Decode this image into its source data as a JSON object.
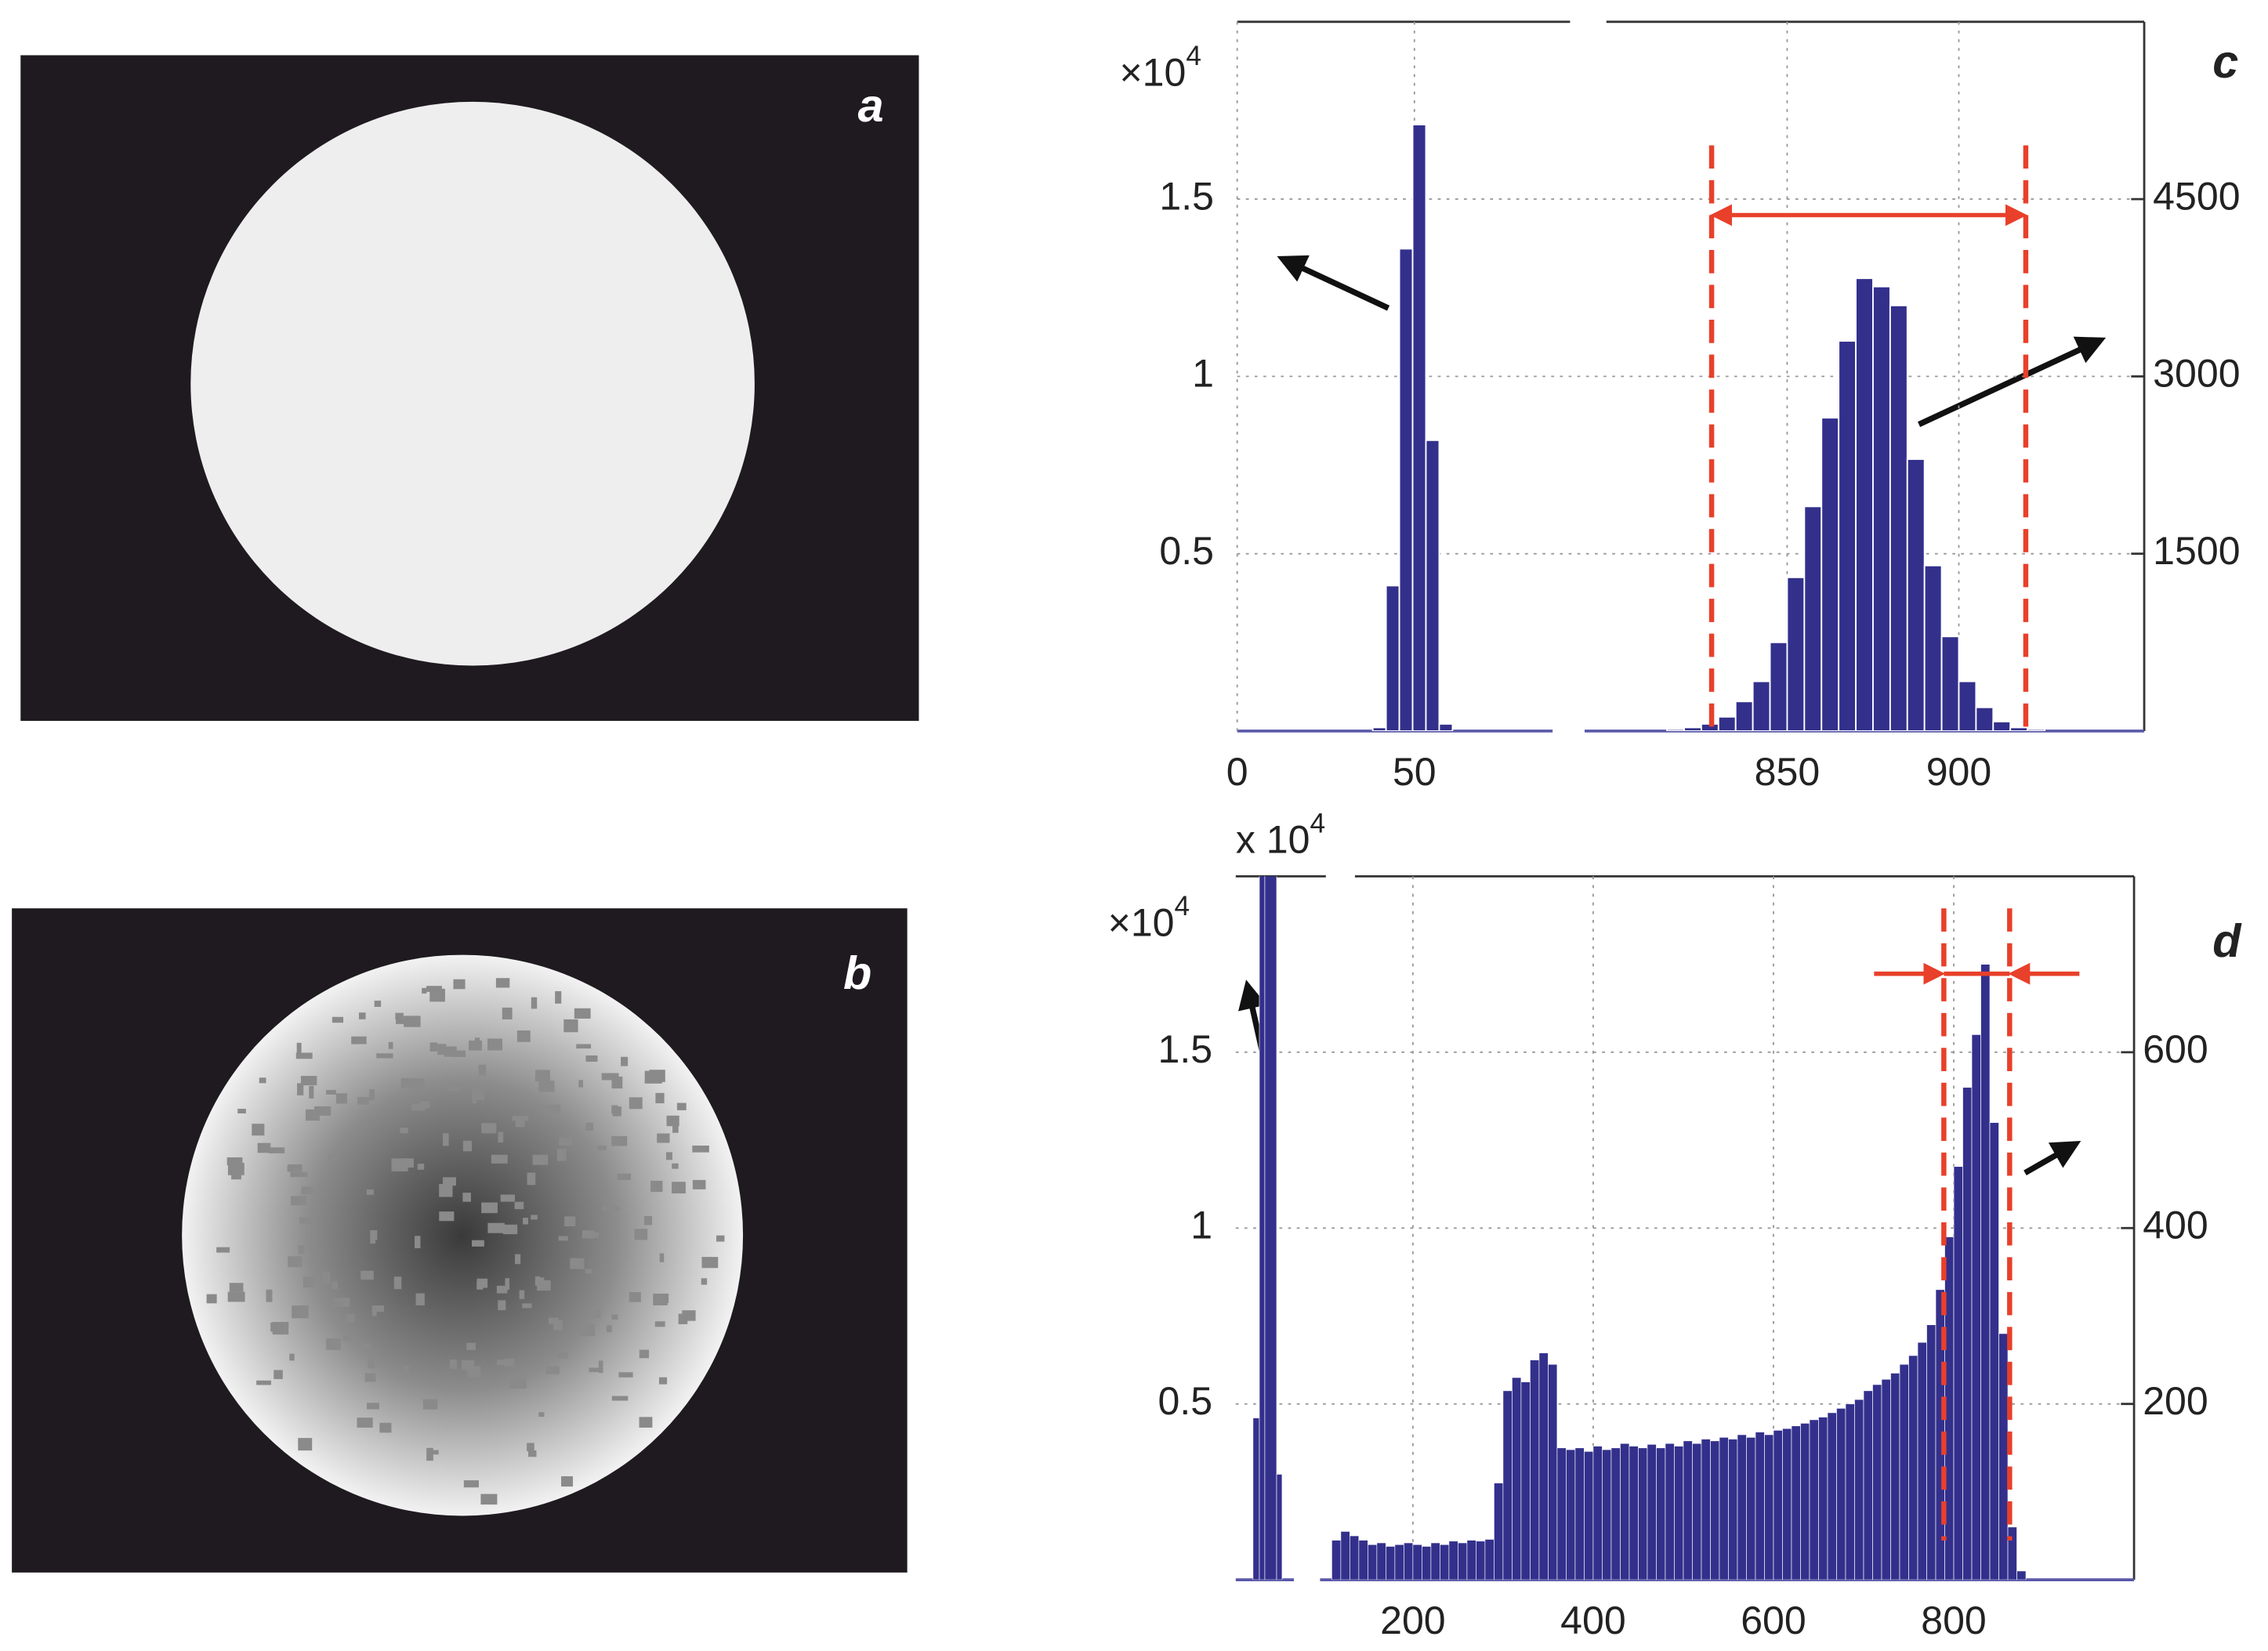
{
  "images": [
    {
      "label": "a"
    },
    {
      "label": "b"
    }
  ],
  "chart_data": [
    {
      "type": "histogram",
      "label": "c",
      "color": "#33308c",
      "grid": true,
      "y_scale_label": {
        "base": "×10",
        "exponent": "4"
      },
      "ylim": [
        0,
        2
      ],
      "yticks": [
        0.5,
        1,
        1.5
      ],
      "y2lim": [
        0,
        6000
      ],
      "y2ticks": [
        1500,
        3000,
        4500
      ],
      "markers": [
        828,
        919.5
      ],
      "marker_color": "#e8402a",
      "segments": [
        {
          "axis": "y",
          "xlim": [
            0,
            89
          ],
          "xticks": [
            0,
            50
          ],
          "bins": [
            38.25,
            42,
            45.75,
            49.5,
            53.25,
            57,
            60.75
          ],
          "values": [
            0.01,
            0.41,
            1.36,
            1.71,
            0.82,
            0.02
          ]
        },
        {
          "axis": "y2",
          "xlim": [
            791,
            954
          ],
          "xticks": [
            850,
            900
          ],
          "bins": [
            815,
            820,
            825,
            830,
            835,
            840,
            845,
            850,
            855,
            860,
            865,
            870,
            875,
            880,
            885,
            890,
            895,
            900,
            905,
            910,
            915,
            920,
            925
          ],
          "values": [
            15,
            30,
            60,
            120,
            250,
            420,
            750,
            1300,
            1900,
            2650,
            3300,
            3830,
            3760,
            3600,
            2300,
            1400,
            800,
            420,
            200,
            80,
            30,
            15
          ]
        }
      ]
    },
    {
      "type": "histogram",
      "label": "d",
      "color": "#33308c",
      "grid": true,
      "y_scale_label": {
        "base": "×10",
        "exponent": "4"
      },
      "break_scale_label": {
        "base": "x 10",
        "exponent": "4"
      },
      "ylim": [
        0,
        2
      ],
      "yticks": [
        0.5,
        1,
        1.5
      ],
      "y2lim": [
        0,
        800
      ],
      "y2ticks": [
        200,
        400,
        600
      ],
      "markers": [
        789,
        862
      ],
      "marker_color": "#e8402a",
      "segments": [
        {
          "axis": "y",
          "xlim": [
            0,
            64
          ],
          "bins": [
            19,
            26,
            32,
            45,
            51
          ],
          "values": [
            0.46,
            2.1,
            2.3,
            0.3
          ]
        },
        {
          "axis": "y2",
          "xlim": [
            97,
            1000
          ],
          "xticks": [
            200,
            400,
            600,
            800
          ],
          "bins": [
            110,
            120,
            130,
            140,
            150,
            160,
            170,
            180,
            190,
            200,
            210,
            220,
            230,
            240,
            250,
            260,
            270,
            280,
            290,
            300,
            310,
            320,
            330,
            340,
            350,
            360,
            370,
            380,
            390,
            400,
            410,
            420,
            430,
            440,
            450,
            460,
            470,
            480,
            490,
            500,
            510,
            520,
            530,
            540,
            550,
            560,
            570,
            580,
            590,
            600,
            610,
            620,
            630,
            640,
            650,
            660,
            670,
            680,
            690,
            700,
            710,
            720,
            730,
            740,
            750,
            760,
            770,
            780,
            790,
            800,
            810,
            820,
            830,
            840,
            850,
            860,
            870,
            880
          ],
          "values": [
            45,
            55,
            50,
            45,
            40,
            42,
            38,
            40,
            42,
            40,
            38,
            42,
            40,
            44,
            42,
            45,
            44,
            46,
            110,
            215,
            230,
            225,
            250,
            258,
            245,
            150,
            148,
            150,
            146,
            152,
            148,
            150,
            155,
            152,
            150,
            154,
            150,
            155,
            152,
            158,
            155,
            160,
            158,
            162,
            160,
            165,
            162,
            168,
            165,
            170,
            172,
            175,
            178,
            182,
            185,
            190,
            195,
            200,
            205,
            215,
            222,
            228,
            235,
            245,
            255,
            270,
            290,
            330,
            390,
            470,
            560,
            620,
            700,
            520,
            280,
            60,
            10
          ]
        }
      ]
    }
  ]
}
